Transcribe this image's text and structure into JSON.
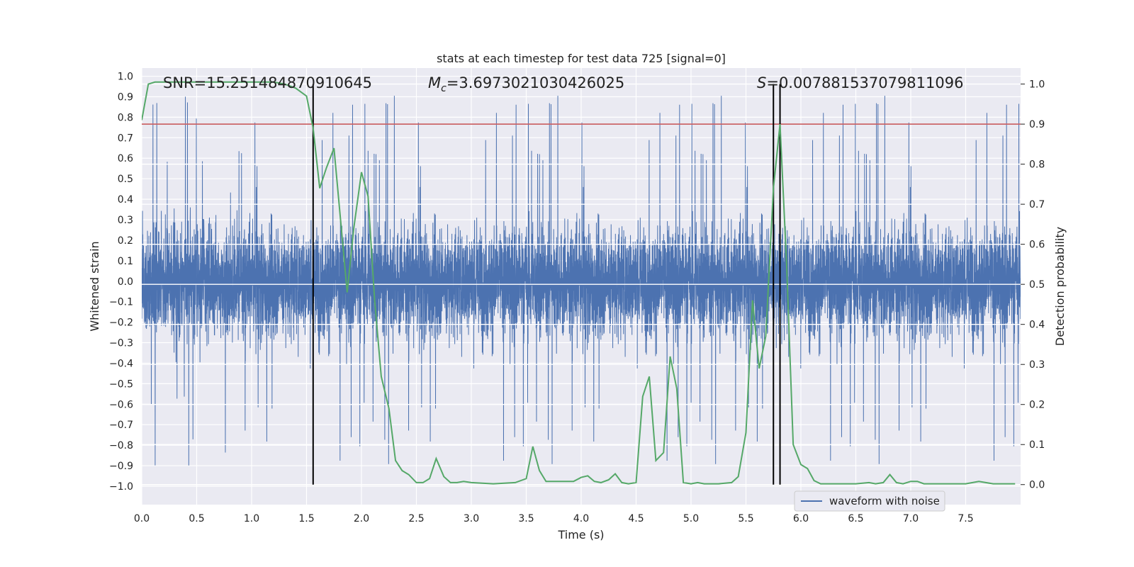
{
  "chart_data": {
    "type": "line",
    "title": "stats at each timestep for test data 725 [signal=0]",
    "xlabel": "Time (s)",
    "ylabel_left": "Whitened strain",
    "ylabel_right": "Detection probability",
    "xlim": [
      0.0,
      8.0
    ],
    "ylim_left": [
      -1.09,
      1.04
    ],
    "ylim_right": [
      -0.05,
      1.04
    ],
    "x_ticks": [
      0.0,
      0.5,
      1.0,
      1.5,
      2.0,
      2.5,
      3.0,
      3.5,
      4.0,
      4.5,
      5.0,
      5.5,
      6.0,
      6.5,
      7.0,
      7.5
    ],
    "x_tick_labels": [
      "0.0",
      "0.5",
      "1.0",
      "1.5",
      "2.0",
      "2.5",
      "3.0",
      "3.5",
      "4.0",
      "4.5",
      "5.0",
      "5.5",
      "6.0",
      "6.5",
      "7.0",
      "7.5"
    ],
    "y_left_ticks": [
      1.0,
      0.9,
      0.8,
      0.7,
      0.6,
      0.5,
      0.4,
      0.3,
      0.2,
      0.1,
      0.0,
      -0.1,
      -0.2,
      -0.3,
      -0.4,
      -0.5,
      -0.6,
      -0.7,
      -0.8,
      -0.9,
      -1.0
    ],
    "y_left_tick_labels": [
      "1.0",
      "0.9",
      "0.8",
      "0.7",
      "0.6",
      "0.5",
      "0.4",
      "0.3",
      "0.2",
      "0.1",
      "0.0",
      "−0.1",
      "−0.2",
      "−0.3",
      "−0.4",
      "−0.5",
      "−0.6",
      "−0.7",
      "−0.8",
      "−0.9",
      "−1.0"
    ],
    "y_right_ticks": [
      1.0,
      0.9,
      0.8,
      0.7,
      0.6,
      0.5,
      0.4,
      0.3,
      0.2,
      0.1,
      0.0
    ],
    "y_right_tick_labels": [
      "1.0",
      "0.9",
      "0.8",
      "0.7",
      "0.6",
      "0.5",
      "0.4",
      "0.3",
      "0.2",
      "0.1",
      "0.0"
    ],
    "grid": true,
    "legend": {
      "label": "waveform with noise",
      "placement": "lower-right"
    },
    "annotations": {
      "snr": "SNR=15.251484870910645",
      "mc_symbol": "M",
      "mc_subscript": "c",
      "mc_value": "=3.6973021030426025",
      "s_symbol": "S",
      "s_value": "=0.007881537079811096"
    },
    "waveform_noise": {
      "n_points": 8000,
      "core_amplitude": 0.5,
      "peak_amplitude": 0.93,
      "seed": 725
    },
    "threshold_right": 0.9,
    "vertical_lines_x": [
      1.56,
      5.75,
      5.81
    ],
    "series": [
      {
        "name": "Detection probability",
        "axis": "right",
        "color": "#55a868",
        "x": [
          0.0,
          0.06,
          0.12,
          0.18,
          0.25,
          0.5,
          0.75,
          1.0,
          1.1,
          1.2,
          1.3,
          1.4,
          1.5,
          1.56,
          1.62,
          1.68,
          1.75,
          1.81,
          1.87,
          1.93,
          2.0,
          2.06,
          2.12,
          2.18,
          2.25,
          2.31,
          2.37,
          2.43,
          2.5,
          2.56,
          2.62,
          2.68,
          2.75,
          2.81,
          2.87,
          2.93,
          3.0,
          3.2,
          3.4,
          3.5,
          3.56,
          3.62,
          3.68,
          3.75,
          3.81,
          3.87,
          3.93,
          4.0,
          4.06,
          4.12,
          4.18,
          4.25,
          4.31,
          4.37,
          4.43,
          4.5,
          4.56,
          4.62,
          4.68,
          4.75,
          4.81,
          4.87,
          4.93,
          5.0,
          5.06,
          5.12,
          5.25,
          5.37,
          5.43,
          5.5,
          5.56,
          5.62,
          5.68,
          5.75,
          5.81,
          5.87,
          5.93,
          6.0,
          6.06,
          6.12,
          6.18,
          6.25,
          6.5,
          6.62,
          6.68,
          6.75,
          6.81,
          6.87,
          6.93,
          7.0,
          7.06,
          7.12,
          7.25,
          7.5,
          7.62,
          7.75,
          7.87,
          7.95
        ],
        "values": [
          0.91,
          1.0,
          1.005,
          1.005,
          1.005,
          1.005,
          1.005,
          1.005,
          1.005,
          1.005,
          1.0,
          0.99,
          0.97,
          0.89,
          0.74,
          0.79,
          0.84,
          0.66,
          0.48,
          0.64,
          0.78,
          0.72,
          0.46,
          0.27,
          0.19,
          0.06,
          0.035,
          0.025,
          0.005,
          0.005,
          0.015,
          0.065,
          0.02,
          0.005,
          0.005,
          0.008,
          0.005,
          0.002,
          0.005,
          0.015,
          0.095,
          0.035,
          0.008,
          0.008,
          0.008,
          0.008,
          0.008,
          0.018,
          0.022,
          0.008,
          0.005,
          0.012,
          0.027,
          0.005,
          0.002,
          0.005,
          0.22,
          0.27,
          0.06,
          0.08,
          0.32,
          0.24,
          0.005,
          0.002,
          0.005,
          0.002,
          0.002,
          0.005,
          0.02,
          0.13,
          0.46,
          0.29,
          0.37,
          0.74,
          0.9,
          0.55,
          0.1,
          0.05,
          0.04,
          0.01,
          0.002,
          0.002,
          0.002,
          0.005,
          0.002,
          0.005,
          0.025,
          0.005,
          0.002,
          0.008,
          0.008,
          0.002,
          0.002,
          0.002,
          0.008,
          0.002,
          0.002,
          0.002
        ]
      }
    ]
  },
  "colors": {
    "background": "#eaeaf2",
    "waveform": "#4c72b0",
    "probability": "#55a868",
    "threshold": "#c44e52",
    "vertical": "#000000",
    "grid": "#ffffff"
  },
  "icons": {
    "legend_swatch": "line-swatch"
  }
}
